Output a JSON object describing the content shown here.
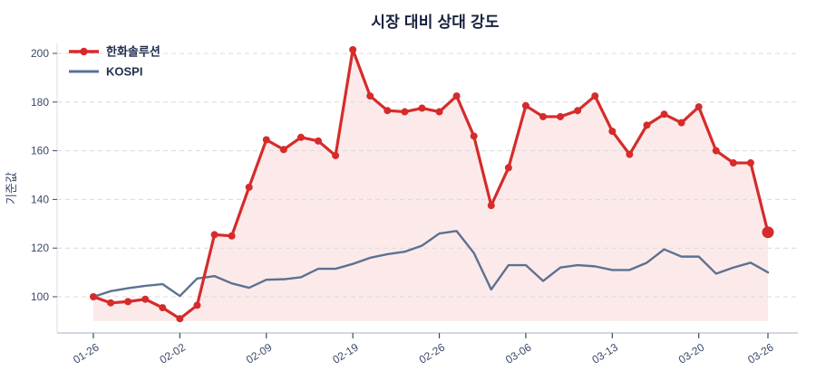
{
  "chart_data": {
    "type": "line",
    "title": "시장 대비 상대 강도",
    "ylabel": "기준값",
    "xlabel": "",
    "grid": "horizontal-dashed",
    "legend_position": "top-left",
    "ylim": [
      86,
      206
    ],
    "yticks": [
      100,
      120,
      140,
      160,
      180,
      200
    ],
    "xtick_indices": [
      0,
      5,
      10,
      15,
      20,
      25,
      30,
      35,
      39
    ],
    "xtick_labels": [
      "01-26",
      "02-02",
      "02-09",
      "02-19",
      "02-26",
      "03-06",
      "03-13",
      "03-20",
      "03-26"
    ],
    "fill_baseline": 90,
    "series": [
      {
        "id": "hanwha",
        "name": "한화솔루션",
        "color": "#d62b2b",
        "area_fill": "#fceaea",
        "line_width": 3.2,
        "markers": true,
        "marker_radius": 4,
        "end_marker_radius": 6.5,
        "values": [
          100,
          97.5,
          98,
          99,
          95.5,
          91,
          96.5,
          125.5,
          125,
          145,
          164.5,
          160.5,
          165.5,
          164,
          158,
          201.5,
          182.5,
          176.5,
          176,
          177.5,
          176,
          182.5,
          166,
          137.5,
          153,
          178.5,
          174,
          174,
          176.5,
          182.5,
          168,
          158.5,
          170.5,
          175,
          171.5,
          178,
          160,
          155,
          155,
          126.5
        ]
      },
      {
        "id": "kospi",
        "name": "KOSPI",
        "color": "#5d7192",
        "area_fill": null,
        "line_width": 2.4,
        "markers": false,
        "values": [
          100,
          102.3,
          103.5,
          104.5,
          105.2,
          100.3,
          107.5,
          108.5,
          105.5,
          103.7,
          107,
          107.2,
          108,
          111.5,
          111.5,
          113.5,
          116,
          117.5,
          118.5,
          121,
          126,
          127,
          118,
          103,
          113,
          113,
          106.5,
          112,
          113,
          112.5,
          111,
          111,
          114,
          119.5,
          116.5,
          116.5,
          109.5,
          112,
          114,
          110
        ]
      }
    ],
    "colors": {
      "title_text": "#16213d",
      "tick_text": "#3b4a68",
      "legend_text": "#22304f",
      "gridline": "#d9d9d9",
      "spine_bottom": "#c5ccd7",
      "spine_left": "#d9dce1"
    }
  }
}
